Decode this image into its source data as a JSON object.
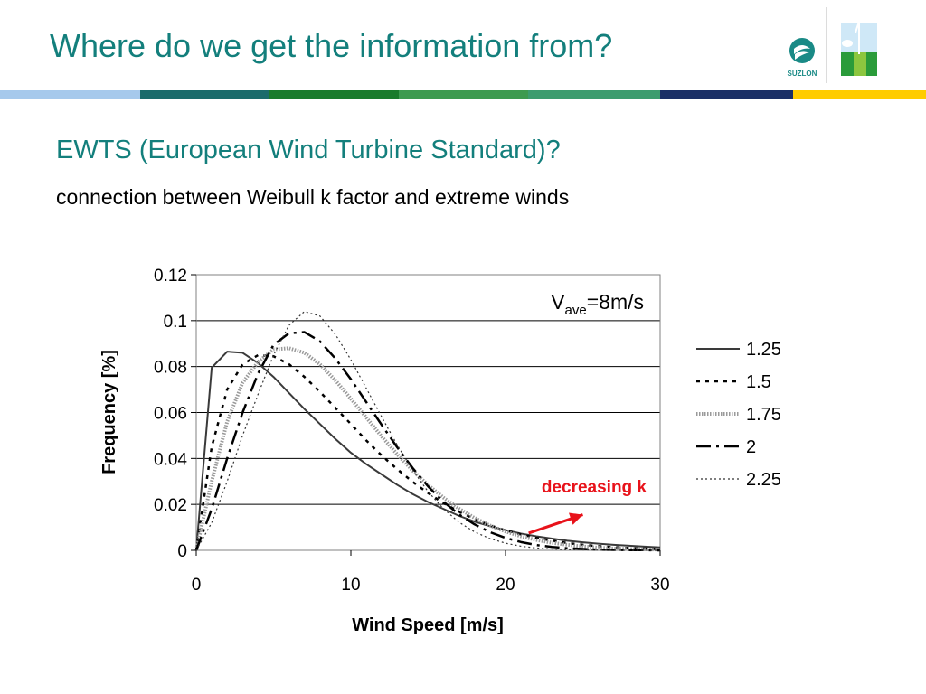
{
  "slide": {
    "title": "Where do we get the information from?",
    "subtitle": "EWTS (European Wind Turbine Standard)?",
    "description": "connection between Weibull k factor and extreme winds",
    "logo_text": "SUZLON",
    "stripe_colors": [
      "#a6c9ec",
      "#1b6b6b",
      "#1a7b2c",
      "#3d9a4f",
      "#3c9c6e",
      "#1a2f66",
      "#ffcc00"
    ]
  },
  "chart_data": {
    "type": "line",
    "xlabel": "Wind Speed [m/s]",
    "ylabel": "Frequency [%]",
    "xlim": [
      0,
      30
    ],
    "ylim": [
      0,
      0.12
    ],
    "x_ticks": [
      "0",
      "10",
      "20",
      "30"
    ],
    "y_ticks": [
      "0",
      "0.02",
      "0.04",
      "0.06",
      "0.08",
      "0.1",
      "0.12"
    ],
    "grid": "horizontal",
    "legend_position": "right",
    "annotation_vave": {
      "base": "V",
      "sub": "ave",
      "rest": "=8m/s"
    },
    "annotation_trend": "decreasing k",
    "trend_arrow": {
      "from": [
        21.5,
        0.0075
      ],
      "to": [
        25,
        0.0155
      ],
      "color": "#e8121a"
    },
    "x": [
      0,
      1,
      2,
      3,
      4,
      5,
      6,
      7,
      8,
      9,
      10,
      11,
      12,
      13,
      14,
      15,
      16,
      17,
      18,
      19,
      20,
      21,
      22,
      23,
      24,
      25,
      26,
      27,
      28,
      29,
      30
    ],
    "series": [
      {
        "name": "1.25",
        "style": "solid",
        "values": [
          0,
          0.0795,
          0.0865,
          0.086,
          0.0815,
          0.0755,
          0.0685,
          0.0615,
          0.055,
          0.0485,
          0.0425,
          0.0375,
          0.033,
          0.0285,
          0.0245,
          0.021,
          0.018,
          0.015,
          0.0125,
          0.0105,
          0.0088,
          0.0073,
          0.0061,
          0.0051,
          0.0042,
          0.0035,
          0.0029,
          0.0024,
          0.002,
          0.0016,
          0.0013
        ]
      },
      {
        "name": "1.5",
        "style": "dotted",
        "values": [
          0,
          0.045,
          0.07,
          0.081,
          0.085,
          0.0845,
          0.081,
          0.0755,
          0.069,
          0.062,
          0.055,
          0.0478,
          0.0412,
          0.0353,
          0.0298,
          0.0249,
          0.0205,
          0.0168,
          0.0136,
          0.0109,
          0.0087,
          0.0069,
          0.0054,
          0.0042,
          0.0032,
          0.0024,
          0.0018,
          0.0014,
          0.001,
          0.0008,
          0.0006
        ]
      },
      {
        "name": "1.75",
        "style": "hatched",
        "values": [
          0,
          0.03,
          0.056,
          0.073,
          0.082,
          0.0875,
          0.088,
          0.086,
          0.081,
          0.074,
          0.066,
          0.0578,
          0.0495,
          0.0418,
          0.0347,
          0.0284,
          0.0229,
          0.0181,
          0.0141,
          0.0108,
          0.0082,
          0.0061,
          0.0045,
          0.0033,
          0.0024,
          0.0017,
          0.0012,
          0.0008,
          0.0006,
          0.0004,
          0.0003
        ]
      },
      {
        "name": "2",
        "style": "dashdot",
        "values": [
          0,
          0.018,
          0.04,
          0.06,
          0.077,
          0.0895,
          0.0945,
          0.095,
          0.091,
          0.0835,
          0.0745,
          0.0645,
          0.0545,
          0.0448,
          0.0358,
          0.0278,
          0.0211,
          0.0156,
          0.0113,
          0.0079,
          0.0054,
          0.0036,
          0.0023,
          0.0015,
          0.0009,
          0.0006,
          0.0003,
          0.0002,
          0.0001,
          0.0001,
          0
        ]
      },
      {
        "name": "2.25",
        "style": "finedot",
        "values": [
          0,
          0.012,
          0.03,
          0.05,
          0.068,
          0.085,
          0.098,
          0.104,
          0.102,
          0.094,
          0.083,
          0.0705,
          0.058,
          0.0458,
          0.0349,
          0.0255,
          0.018,
          0.0122,
          0.008,
          0.0051,
          0.0031,
          0.0018,
          0.001,
          0.0006,
          0.0003,
          0.0002,
          0.0001,
          0,
          0,
          0,
          0
        ]
      }
    ]
  }
}
